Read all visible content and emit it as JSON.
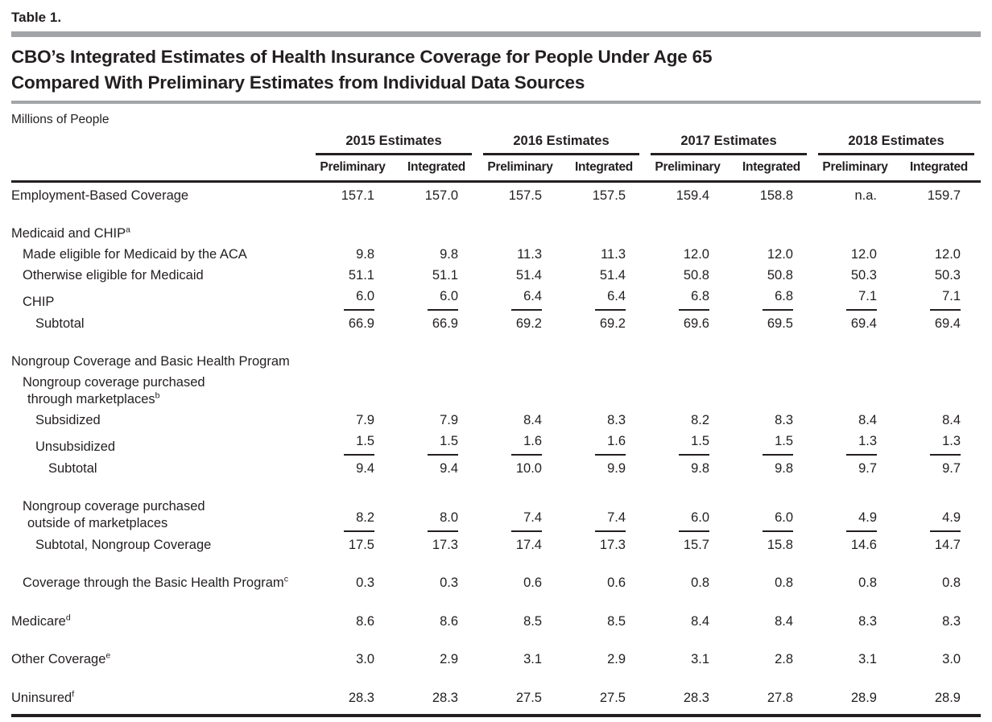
{
  "header": {
    "table_label": "Table 1.",
    "title_line1": "CBO’s Integrated Estimates of Health Insurance Coverage for People Under Age 65",
    "title_line2": "Compared With Preliminary Estimates from Individual Data Sources",
    "units": "Millions of People"
  },
  "table": {
    "year_groups": [
      "2015 Estimates",
      "2016 Estimates",
      "2017 Estimates",
      "2018 Estimates"
    ],
    "sub_columns": [
      "Preliminary",
      "Integrated"
    ],
    "rows": [
      {
        "lines": [
          {
            "text": "Employment-Based Coverage"
          }
        ],
        "indent": 0,
        "space_before": false,
        "underline": false,
        "values": [
          "157.1",
          "157.0",
          "157.5",
          "157.5",
          "159.4",
          "158.8",
          "n.a.",
          "159.7"
        ]
      },
      {
        "lines": [
          {
            "text": "Medicaid and CHIP",
            "sup": "a"
          }
        ],
        "indent": 0,
        "space_before": true,
        "underline": false,
        "values": [
          "",
          "",
          "",
          "",
          "",
          "",
          "",
          ""
        ]
      },
      {
        "lines": [
          {
            "text": "Made eligible for Medicaid by the ACA"
          }
        ],
        "indent": 1,
        "space_before": false,
        "underline": false,
        "values": [
          "9.8",
          "9.8",
          "11.3",
          "11.3",
          "12.0",
          "12.0",
          "12.0",
          "12.0"
        ]
      },
      {
        "lines": [
          {
            "text": "Otherwise eligible for Medicaid"
          }
        ],
        "indent": 1,
        "space_before": false,
        "underline": false,
        "values": [
          "51.1",
          "51.1",
          "51.4",
          "51.4",
          "50.8",
          "50.8",
          "50.3",
          "50.3"
        ]
      },
      {
        "lines": [
          {
            "text": "CHIP"
          }
        ],
        "indent": 1,
        "space_before": false,
        "underline": true,
        "values": [
          "6.0",
          "6.0",
          "6.4",
          "6.4",
          "6.8",
          "6.8",
          "7.1",
          "7.1"
        ]
      },
      {
        "lines": [
          {
            "text": "Subtotal"
          }
        ],
        "indent": 2,
        "space_before": false,
        "underline": false,
        "values": [
          "66.9",
          "66.9",
          "69.2",
          "69.2",
          "69.6",
          "69.5",
          "69.4",
          "69.4"
        ]
      },
      {
        "lines": [
          {
            "text": "Nongroup Coverage and Basic Health Program"
          }
        ],
        "indent": 0,
        "space_before": true,
        "underline": false,
        "values": [
          "",
          "",
          "",
          "",
          "",
          "",
          "",
          ""
        ]
      },
      {
        "lines": [
          {
            "text": "Nongroup coverage purchased"
          },
          {
            "text": "through marketplaces",
            "sup": "b"
          }
        ],
        "indent": 1,
        "space_before": false,
        "underline": false,
        "values": [
          "",
          "",
          "",
          "",
          "",
          "",
          "",
          ""
        ]
      },
      {
        "lines": [
          {
            "text": "Subsidized"
          }
        ],
        "indent": 2,
        "space_before": false,
        "underline": false,
        "values": [
          "7.9",
          "7.9",
          "8.4",
          "8.3",
          "8.2",
          "8.3",
          "8.4",
          "8.4"
        ]
      },
      {
        "lines": [
          {
            "text": "Unsubsidized"
          }
        ],
        "indent": 2,
        "space_before": false,
        "underline": true,
        "values": [
          "1.5",
          "1.5",
          "1.6",
          "1.6",
          "1.5",
          "1.5",
          "1.3",
          "1.3"
        ]
      },
      {
        "lines": [
          {
            "text": "Subtotal"
          }
        ],
        "indent": 3,
        "space_before": false,
        "underline": false,
        "values": [
          "9.4",
          "9.4",
          "10.0",
          "9.9",
          "9.8",
          "9.8",
          "9.7",
          "9.7"
        ]
      },
      {
        "lines": [
          {
            "text": "Nongroup coverage purchased"
          },
          {
            "text": "outside of marketplaces"
          }
        ],
        "indent": 1,
        "space_before": true,
        "underline": true,
        "values": [
          "8.2",
          "8.0",
          "7.4",
          "7.4",
          "6.0",
          "6.0",
          "4.9",
          "4.9"
        ]
      },
      {
        "lines": [
          {
            "text": "Subtotal, Nongroup Coverage"
          }
        ],
        "indent": 2,
        "space_before": false,
        "underline": false,
        "values": [
          "17.5",
          "17.3",
          "17.4",
          "17.3",
          "15.7",
          "15.8",
          "14.6",
          "14.7"
        ]
      },
      {
        "lines": [
          {
            "text": "Coverage through the Basic Health Program",
            "sup": "c"
          }
        ],
        "indent": 1,
        "space_before": true,
        "underline": false,
        "values": [
          "0.3",
          "0.3",
          "0.6",
          "0.6",
          "0.8",
          "0.8",
          "0.8",
          "0.8"
        ]
      },
      {
        "lines": [
          {
            "text": "Medicare",
            "sup": "d"
          }
        ],
        "indent": 0,
        "space_before": true,
        "underline": false,
        "values": [
          "8.6",
          "8.6",
          "8.5",
          "8.5",
          "8.4",
          "8.4",
          "8.3",
          "8.3"
        ]
      },
      {
        "lines": [
          {
            "text": "Other Coverage",
            "sup": "e"
          }
        ],
        "indent": 0,
        "space_before": true,
        "underline": false,
        "values": [
          "3.0",
          "2.9",
          "3.1",
          "2.9",
          "3.1",
          "2.8",
          "3.1",
          "3.0"
        ]
      },
      {
        "lines": [
          {
            "text": "Uninsured",
            "sup": "f"
          }
        ],
        "indent": 0,
        "space_before": true,
        "underline": false,
        "values": [
          "28.3",
          "28.3",
          "27.5",
          "27.5",
          "28.3",
          "27.8",
          "28.9",
          "28.9"
        ]
      }
    ]
  }
}
